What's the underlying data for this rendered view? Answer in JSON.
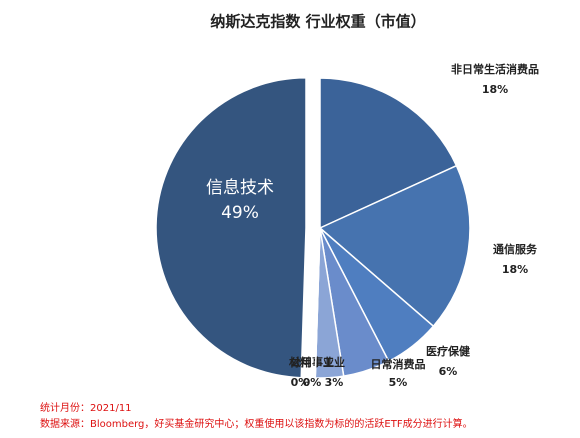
{
  "chart_data": {
    "type": "pie",
    "title": "纳斯达克指数 行业权重（市值）",
    "categories": [
      "信息技术",
      "非日常生活消费品",
      "通信服务",
      "医疗保健",
      "日常消费品",
      "工业",
      "公用事业",
      "材料"
    ],
    "values": [
      49,
      18,
      18,
      6,
      5,
      3,
      0,
      0
    ],
    "value_labels": [
      "49%",
      "18%",
      "18%",
      "6%",
      "5%",
      "3%",
      "0%",
      "0%"
    ],
    "colors": [
      "#34557f",
      "#3b6399",
      "#4673af",
      "#4f7ec0",
      "#6a8ccb",
      "#8ba5d6",
      "#b3c3e4",
      "#c9d5ec"
    ]
  },
  "notes": [
    "统计月份：2021/11",
    "数据来源：Bloomberg，好买基金研究中心；权重使用以该指数为标的的活跃ETF成分进行计算。"
  ]
}
